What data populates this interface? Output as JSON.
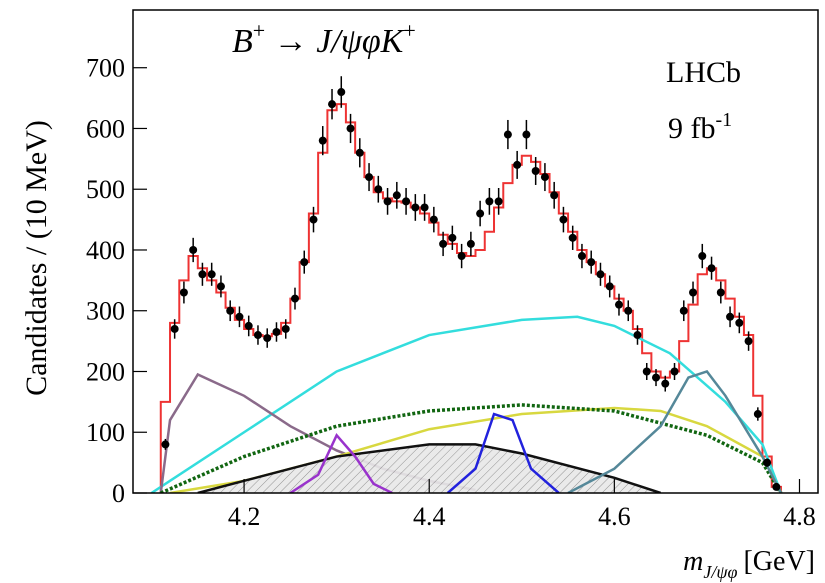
{
  "chart_data": {
    "type": "physics-fit",
    "title_parts": [
      "B",
      "+",
      " → J/ψφK",
      "+"
    ],
    "annotations": [
      "LHCb",
      "9 fb",
      "-1"
    ],
    "y_label": "Candidates / (10 MeV)",
    "x_label_symbol": "m",
    "x_label_subscript": "J/ψφ",
    "x_label_unit": "[GeV]",
    "xlim": [
      4.08,
      4.82
    ],
    "ylim": [
      0,
      795
    ],
    "xticks": [
      4.2,
      4.4,
      4.6,
      4.8
    ],
    "yticks": [
      0,
      100,
      200,
      300,
      400,
      500,
      600,
      700
    ],
    "data": {
      "color": "#000000",
      "x": [
        4.115,
        4.125,
        4.135,
        4.145,
        4.155,
        4.165,
        4.175,
        4.185,
        4.195,
        4.205,
        4.215,
        4.225,
        4.235,
        4.245,
        4.255,
        4.265,
        4.275,
        4.285,
        4.295,
        4.305,
        4.315,
        4.325,
        4.335,
        4.345,
        4.355,
        4.365,
        4.375,
        4.385,
        4.395,
        4.405,
        4.415,
        4.425,
        4.435,
        4.445,
        4.455,
        4.465,
        4.475,
        4.485,
        4.495,
        4.505,
        4.515,
        4.525,
        4.535,
        4.545,
        4.555,
        4.565,
        4.575,
        4.585,
        4.595,
        4.605,
        4.615,
        4.625,
        4.635,
        4.645,
        4.655,
        4.665,
        4.675,
        4.685,
        4.695,
        4.705,
        4.715,
        4.725,
        4.735,
        4.745,
        4.755,
        4.765,
        4.775
      ],
      "values": [
        80,
        270,
        330,
        400,
        360,
        360,
        340,
        300,
        290,
        275,
        260,
        255,
        265,
        270,
        320,
        380,
        450,
        580,
        640,
        660,
        600,
        560,
        520,
        500,
        480,
        490,
        480,
        470,
        470,
        450,
        410,
        420,
        390,
        410,
        460,
        480,
        480,
        590,
        540,
        590,
        530,
        520,
        490,
        450,
        420,
        390,
        380,
        360,
        340,
        310,
        300,
        260,
        200,
        190,
        180,
        200,
        300,
        330,
        390,
        370,
        330,
        290,
        280,
        250,
        130,
        50,
        10
      ],
      "errors": [
        9,
        16,
        18,
        20,
        19,
        19,
        18,
        17,
        17,
        17,
        16,
        16,
        16,
        16,
        18,
        19,
        21,
        24,
        25,
        26,
        24,
        24,
        23,
        22,
        22,
        22,
        22,
        22,
        22,
        21,
        20,
        20,
        20,
        20,
        21,
        22,
        22,
        24,
        23,
        24,
        23,
        23,
        22,
        21,
        20,
        20,
        19,
        19,
        18,
        18,
        17,
        16,
        14,
        14,
        13,
        14,
        17,
        18,
        20,
        19,
        18,
        17,
        17,
        16,
        11,
        7,
        3
      ]
    },
    "series": [
      {
        "color": "#ee3333",
        "style": "step",
        "bin_width": 0.01,
        "x": [
          4.115,
          4.125,
          4.135,
          4.145,
          4.155,
          4.165,
          4.175,
          4.185,
          4.195,
          4.205,
          4.215,
          4.225,
          4.235,
          4.245,
          4.255,
          4.265,
          4.275,
          4.285,
          4.295,
          4.305,
          4.315,
          4.325,
          4.335,
          4.345,
          4.355,
          4.365,
          4.375,
          4.385,
          4.395,
          4.405,
          4.415,
          4.425,
          4.435,
          4.445,
          4.455,
          4.465,
          4.475,
          4.485,
          4.495,
          4.505,
          4.515,
          4.525,
          4.535,
          4.545,
          4.555,
          4.565,
          4.575,
          4.585,
          4.595,
          4.605,
          4.615,
          4.625,
          4.635,
          4.645,
          4.655,
          4.665,
          4.675,
          4.685,
          4.695,
          4.705,
          4.715,
          4.725,
          4.735,
          4.745,
          4.755,
          4.765,
          4.775
        ],
        "values": [
          150,
          280,
          350,
          390,
          370,
          350,
          330,
          305,
          285,
          270,
          260,
          258,
          262,
          280,
          320,
          380,
          460,
          560,
          630,
          640,
          610,
          560,
          520,
          495,
          485,
          480,
          478,
          470,
          460,
          445,
          425,
          410,
          395,
          390,
          400,
          430,
          470,
          510,
          540,
          555,
          545,
          525,
          495,
          460,
          430,
          400,
          380,
          360,
          340,
          320,
          300,
          270,
          230,
          200,
          190,
          200,
          250,
          310,
          360,
          370,
          350,
          320,
          290,
          260,
          160,
          60,
          10
        ]
      },
      {
        "color": "#33dddd",
        "style": "line",
        "x": [
          4.1,
          4.12,
          4.2,
          4.3,
          4.4,
          4.5,
          4.56,
          4.6,
          4.66,
          4.72,
          4.76,
          4.78
        ],
        "values": [
          0,
          20,
          100,
          200,
          260,
          285,
          290,
          275,
          230,
          150,
          80,
          0
        ]
      },
      {
        "color": "#8a6a8a",
        "style": "line",
        "x": [
          4.11,
          4.12,
          4.15,
          4.2,
          4.25,
          4.3,
          4.35,
          4.4,
          4.45
        ],
        "values": [
          0,
          120,
          195,
          160,
          110,
          70,
          40,
          20,
          5
        ]
      },
      {
        "color": "#d8d840",
        "style": "line",
        "x": [
          4.12,
          4.2,
          4.3,
          4.4,
          4.5,
          4.6,
          4.65,
          4.7,
          4.76,
          4.78
        ],
        "values": [
          0,
          20,
          60,
          105,
          130,
          140,
          135,
          110,
          60,
          0
        ]
      },
      {
        "color": "#116611",
        "style": "dotted",
        "x": [
          4.11,
          4.2,
          4.3,
          4.4,
          4.5,
          4.6,
          4.7,
          4.76,
          4.78
        ],
        "values": [
          0,
          60,
          110,
          135,
          145,
          135,
          95,
          50,
          0
        ]
      },
      {
        "color": "#111111",
        "style": "hatched",
        "x": [
          4.15,
          4.2,
          4.3,
          4.4,
          4.45,
          4.5,
          4.6,
          4.65
        ],
        "values": [
          0,
          20,
          60,
          80,
          80,
          65,
          25,
          0
        ]
      },
      {
        "color": "#9933cc",
        "style": "line",
        "x": [
          4.25,
          4.28,
          4.3,
          4.32,
          4.34,
          4.36
        ],
        "values": [
          0,
          30,
          95,
          60,
          15,
          0
        ]
      },
      {
        "color": "#2222dd",
        "style": "line",
        "x": [
          4.42,
          4.45,
          4.47,
          4.49,
          4.51,
          4.54
        ],
        "values": [
          0,
          40,
          130,
          120,
          40,
          0
        ]
      },
      {
        "color": "#558899",
        "style": "line",
        "x": [
          4.55,
          4.6,
          4.65,
          4.68,
          4.7,
          4.72,
          4.76,
          4.78
        ],
        "values": [
          0,
          40,
          110,
          190,
          200,
          160,
          60,
          0
        ]
      }
    ]
  }
}
